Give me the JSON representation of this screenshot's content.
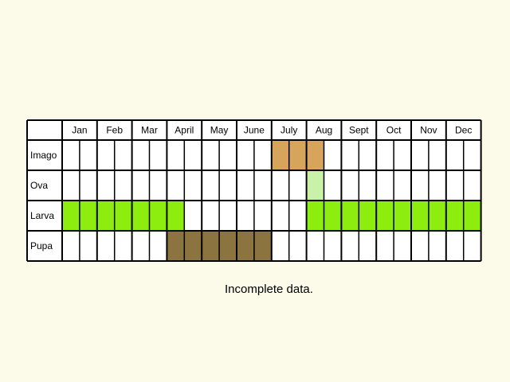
{
  "chart_data": {
    "type": "table",
    "months": [
      "Jan",
      "Feb",
      "Mar",
      "April",
      "May",
      "June",
      "July",
      "Aug",
      "Sept",
      "Oct",
      "Nov",
      "Dec"
    ],
    "subdivisions_per_month": 2,
    "stages": [
      {
        "name": "Imago",
        "color": "#d6a45a",
        "filled": [
          12,
          13,
          14
        ]
      },
      {
        "name": "Ova",
        "color": "#c9f2a8",
        "filled": [
          14
        ]
      },
      {
        "name": "Larva",
        "color": "#8ded0f",
        "filled": [
          0,
          1,
          2,
          3,
          4,
          5,
          6,
          14,
          15,
          16,
          17,
          18,
          19,
          20,
          21,
          22,
          23
        ]
      },
      {
        "name": "Pupa",
        "color": "#8b7440",
        "filled": [
          6,
          7,
          8,
          9,
          10,
          11
        ]
      }
    ],
    "empty_color": "#ffffff",
    "border_color": "#000000"
  },
  "caption": "Incomplete data."
}
